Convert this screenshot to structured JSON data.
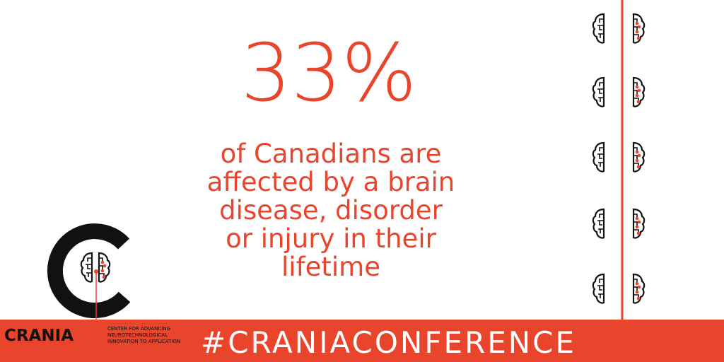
{
  "stat": "33%",
  "description": [
    "of Canadians are",
    "affected by a brain",
    "disease, disorder",
    "or injury in their",
    "lifetime"
  ],
  "logo": {
    "name": "CRANIA",
    "tagline": [
      "CENTER FOR ADVANCING",
      "NEUROTECHNOLOGICAL",
      "INNOVATION TO APPLICATION"
    ]
  },
  "hashtag": "#CRANIACONFERENCE"
}
